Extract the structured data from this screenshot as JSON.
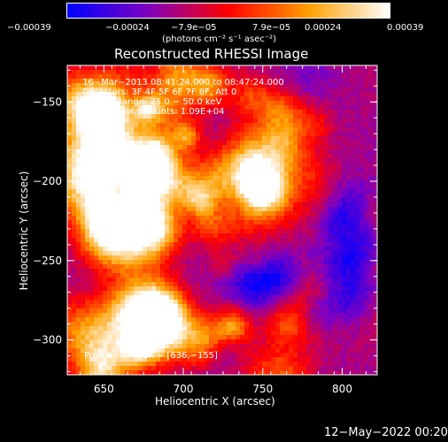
{
  "chart_data": {
    "type": "heatmap",
    "title": "Reconstructed RHESSI Image",
    "xlabel": "Heliocentric X (arcsec)",
    "ylabel": "Heliocentric Y (arcsec)",
    "xlim": [
      627,
      822
    ],
    "ylim": [
      -322,
      -127
    ],
    "x_ticks": [
      650,
      700,
      750,
      800
    ],
    "x_tick_labels": [
      "650",
      "700",
      "750",
      "800"
    ],
    "y_ticks": [
      -150,
      -200,
      -250,
      -300
    ],
    "y_tick_labels": [
      "−150",
      "−200",
      "−250",
      "−300"
    ],
    "colorbar": {
      "range": [
        -0.00039,
        0.00039
      ],
      "tick_values": [
        -0.00039,
        -0.00024,
        -7.9e-05,
        7.9e-05,
        0.00024,
        0.00039
      ],
      "tick_labels": [
        "−0.00039",
        "−0.00024",
        "−7.9e−05",
        "7.9e−05",
        "0.00024",
        "0.00039"
      ],
      "units_label": "(photons cm⁻² s⁻¹ asec⁻²)",
      "colors": [
        "#0000ff",
        "#8000c0",
        "#ff0000",
        "#ffa000",
        "#ffffff"
      ]
    },
    "annotations": [
      "16−Mar−2013 08:41:24.000 to 08:47:24.000",
      "Detectors: 3F 4F 5F 6F 7F 8F, Att 0",
      "Energy Range: 25.0 − 50.0 keV",
      "Clean     Total counts: 1.09E+04"
    ],
    "peak_label": "Position of Peak = [636,−155]",
    "peak": [
      636,
      -155
    ]
  },
  "footer": {
    "timestamp": "12−May−2022 00:20"
  }
}
